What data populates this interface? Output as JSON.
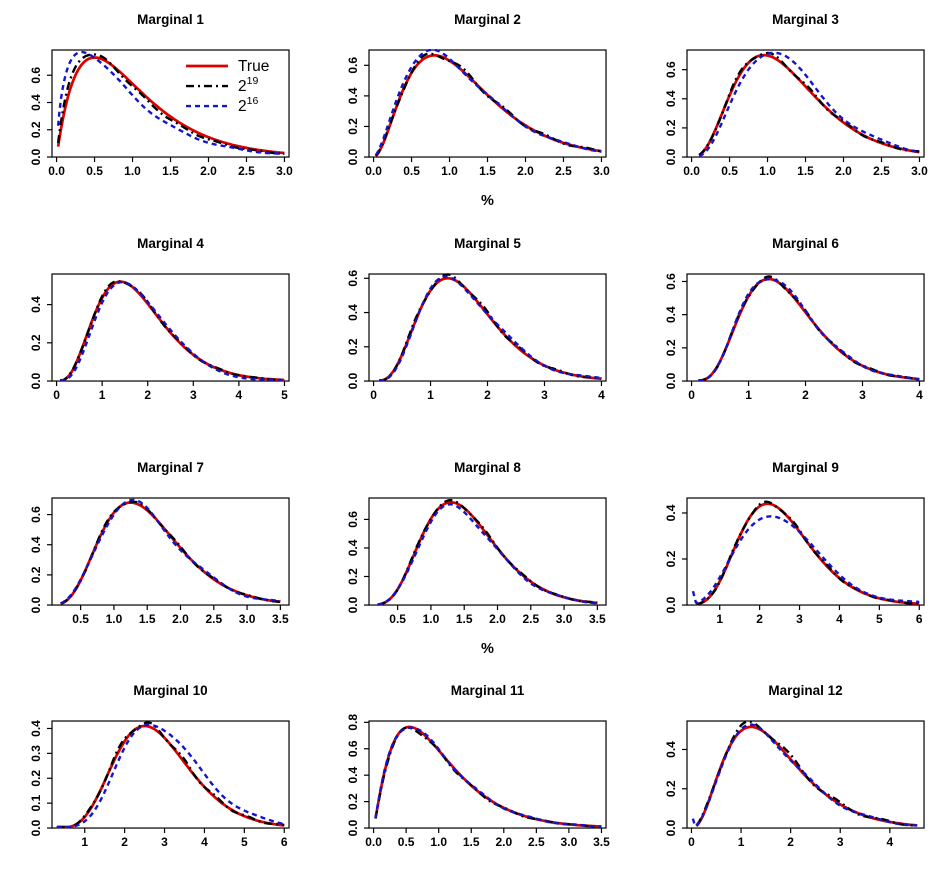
{
  "figure": {
    "background": "#ffffff",
    "series_colors": {
      "true": "#DC0000",
      "pow19": "#000000",
      "pow16": "#1414CC"
    },
    "legend": {
      "items": [
        {
          "name": "True",
          "text": "True",
          "sup": null
        },
        {
          "name": "2^19",
          "text": "2",
          "sup": "19"
        },
        {
          "name": "2^16",
          "text": "2",
          "sup": "16"
        }
      ]
    }
  },
  "chart_data": [
    {
      "type": "line",
      "title": "Marginal 1",
      "xlabel": null,
      "grid": false,
      "xlim": [
        -0.06,
        3.06
      ],
      "ylim": [
        0,
        0.785
      ],
      "xticks": [
        0,
        0.5,
        1,
        1.5,
        2,
        2.5,
        3
      ],
      "xtick_labels": [
        "0.0",
        "0.5",
        "1.0",
        "1.5",
        "2.0",
        "2.5",
        "3.0"
      ],
      "yticks": [
        0,
        0.2,
        0.4,
        0.6
      ],
      "ytick_labels": [
        "0.0",
        "0.2",
        "0.4",
        "0.6"
      ],
      "x_start": 0.02,
      "x_end": 3.0,
      "has_legend": true,
      "series": [
        {
          "name": "True",
          "color": "#DC0000",
          "dash": "solid",
          "dasharray": "",
          "width": 2.7,
          "shape": 2.0,
          "rate": 2.0,
          "peak": 0.73
        },
        {
          "name": "2^19",
          "color": "#000000",
          "dash": "dashdot",
          "dasharray": "8 4 2 4",
          "width": 2.4,
          "shape": 1.92,
          "rate": 2.02,
          "peak": 0.757,
          "dev": {
            "amp": 0.008,
            "freq": 6,
            "phase": 0
          }
        },
        {
          "name": "2^16",
          "color": "#1414CC",
          "dash": "dashed",
          "dasharray": "5 4",
          "width": 2.4,
          "shape": 1.65,
          "rate": 1.88,
          "peak": 0.775,
          "dev": {
            "amp": 0.01,
            "freq": 4,
            "phase": 1
          }
        }
      ]
    },
    {
      "type": "line",
      "title": "Marginal 2",
      "xlabel": "%",
      "grid": false,
      "xlim": [
        -0.06,
        3.06
      ],
      "ylim": [
        0,
        0.7
      ],
      "xticks": [
        0,
        0.5,
        1,
        1.5,
        2,
        2.5,
        3
      ],
      "xtick_labels": [
        "0.0",
        "0.5",
        "1.0",
        "1.5",
        "2.0",
        "2.5",
        "3.0"
      ],
      "yticks": [
        0,
        0.2,
        0.4,
        0.6
      ],
      "ytick_labels": [
        "0.0",
        "0.2",
        "0.4",
        "0.6"
      ],
      "x_start": 0.03,
      "x_end": 3.0,
      "has_legend": false,
      "series": [
        {
          "name": "True",
          "color": "#DC0000",
          "dash": "solid",
          "dasharray": "",
          "width": 2.7,
          "shape": 3.0,
          "rate": 2.5,
          "peak": 0.665
        },
        {
          "name": "2^19",
          "color": "#000000",
          "dash": "dashdot",
          "dasharray": "8 4 2 4",
          "width": 2.4,
          "shape": 3.0,
          "rate": 2.5,
          "peak": 0.672,
          "dev": {
            "amp": 0.015,
            "freq": 5.5,
            "phase": 0.6
          }
        },
        {
          "name": "2^16",
          "color": "#1414CC",
          "dash": "dashed",
          "dasharray": "5 4",
          "width": 2.4,
          "shape": 2.85,
          "rate": 2.42,
          "peak": 0.69,
          "dev": {
            "amp": 0.012,
            "freq": 3.5,
            "phase": 2.1
          }
        }
      ]
    },
    {
      "type": "line",
      "title": "Marginal 3",
      "xlabel": null,
      "grid": false,
      "xlim": [
        -0.06,
        3.06
      ],
      "ylim": [
        0,
        0.735
      ],
      "xticks": [
        0,
        0.5,
        1,
        1.5,
        2,
        2.5,
        3
      ],
      "xtick_labels": [
        "0.0",
        "0.5",
        "1.0",
        "1.5",
        "2.0",
        "2.5",
        "3.0"
      ],
      "yticks": [
        0,
        0.2,
        0.4,
        0.6
      ],
      "ytick_labels": [
        "0.0",
        "0.2",
        "0.4",
        "0.6"
      ],
      "x_start": 0.1,
      "x_end": 3.0,
      "has_legend": false,
      "series": [
        {
          "name": "True",
          "color": "#DC0000",
          "dash": "solid",
          "dasharray": "",
          "width": 2.7,
          "shape": 4.0,
          "rate": 3.16,
          "peak": 0.7
        },
        {
          "name": "2^19",
          "color": "#000000",
          "dash": "dashdot",
          "dasharray": "8 4 2 4",
          "width": 2.4,
          "shape": 4.0,
          "rate": 3.16,
          "peak": 0.71,
          "dev": {
            "amp": 0.012,
            "freq": 6,
            "phase": 1.5
          }
        },
        {
          "name": "2^16",
          "color": "#1414CC",
          "dash": "dashed",
          "dasharray": "5 4",
          "width": 2.4,
          "shape": 4.5,
          "rate": 3.4,
          "peak": 0.725,
          "dev": {
            "amp": 0.022,
            "freq": 2.6,
            "phase": 0.5
          }
        }
      ]
    },
    {
      "type": "line",
      "title": "Marginal 4",
      "xlabel": null,
      "grid": false,
      "xlim": [
        -0.1,
        5.1
      ],
      "ylim": [
        0,
        0.56
      ],
      "xticks": [
        0,
        1,
        2,
        3,
        4,
        5
      ],
      "xtick_labels": [
        "0",
        "1",
        "2",
        "3",
        "4",
        "5"
      ],
      "yticks": [
        0,
        0.2,
        0.4
      ],
      "ytick_labels": [
        "0.0",
        "0.2",
        "0.4"
      ],
      "x_start": 0.08,
      "x_end": 5.0,
      "has_legend": false,
      "series": [
        {
          "name": "True",
          "color": "#DC0000",
          "dash": "solid",
          "dasharray": "",
          "width": 2.7,
          "shape": 4.5,
          "rate": 2.5,
          "peak": 0.52
        },
        {
          "name": "2^19",
          "color": "#000000",
          "dash": "dashdot",
          "dasharray": "8 4 2 4",
          "width": 2.4,
          "shape": 4.5,
          "rate": 2.5,
          "peak": 0.525,
          "dev": {
            "amp": 0.007,
            "freq": 6,
            "phase": 0
          }
        },
        {
          "name": "2^16",
          "color": "#1414CC",
          "dash": "dashed",
          "dasharray": "5 4",
          "width": 2.4,
          "shape": 5.2,
          "rate": 2.87,
          "peak": 0.535,
          "dev": {
            "amp": 0.02,
            "freq": 2,
            "phase": 0.7
          }
        }
      ]
    },
    {
      "type": "line",
      "title": "Marginal 5",
      "xlabel": null,
      "grid": false,
      "xlim": [
        -0.08,
        4.08
      ],
      "ylim": [
        0,
        0.625
      ],
      "xticks": [
        0,
        1,
        2,
        3,
        4
      ],
      "xtick_labels": [
        "0",
        "1",
        "2",
        "3",
        "4"
      ],
      "yticks": [
        0,
        0.2,
        0.4,
        0.6
      ],
      "ytick_labels": [
        "0.0",
        "0.2",
        "0.4",
        "0.6"
      ],
      "x_start": 0.1,
      "x_end": 4.0,
      "has_legend": false,
      "series": [
        {
          "name": "True",
          "color": "#DC0000",
          "dash": "solid",
          "dasharray": "",
          "width": 2.7,
          "shape": 5.0,
          "rate": 3.08,
          "peak": 0.6
        },
        {
          "name": "2^19",
          "color": "#000000",
          "dash": "dashdot",
          "dasharray": "8 4 2 4",
          "width": 2.4,
          "shape": 5.0,
          "rate": 3.08,
          "peak": 0.61,
          "dev": {
            "amp": 0.012,
            "freq": 6,
            "phase": 2.5
          }
        },
        {
          "name": "2^16",
          "color": "#1414CC",
          "dash": "dashed",
          "dasharray": "5 4",
          "width": 2.4,
          "shape": 5.0,
          "rate": 3.05,
          "peak": 0.6,
          "dev": {
            "amp": 0.018,
            "freq": 2.8,
            "phase": 3.5
          }
        }
      ]
    },
    {
      "type": "line",
      "title": "Marginal 6",
      "xlabel": null,
      "grid": false,
      "xlim": [
        -0.08,
        4.08
      ],
      "ylim": [
        0,
        0.645
      ],
      "xticks": [
        0,
        1,
        2,
        3,
        4
      ],
      "xtick_labels": [
        "0",
        "1",
        "2",
        "3",
        "4"
      ],
      "yticks": [
        0,
        0.2,
        0.4,
        0.6
      ],
      "ytick_labels": [
        "0.0",
        "0.2",
        "0.4",
        "0.6"
      ],
      "x_start": 0.12,
      "x_end": 4.0,
      "has_legend": false,
      "series": [
        {
          "name": "True",
          "color": "#DC0000",
          "dash": "solid",
          "dasharray": "",
          "width": 2.7,
          "shape": 5.5,
          "rate": 3.33,
          "peak": 0.615
        },
        {
          "name": "2^19",
          "color": "#000000",
          "dash": "dashdot",
          "dasharray": "8 4 2 4",
          "width": 2.4,
          "shape": 5.5,
          "rate": 3.33,
          "peak": 0.62,
          "dev": {
            "amp": 0.01,
            "freq": 6.5,
            "phase": 1
          }
        },
        {
          "name": "2^16",
          "color": "#1414CC",
          "dash": "dashed",
          "dasharray": "5 4",
          "width": 2.4,
          "shape": 5.5,
          "rate": 3.33,
          "peak": 0.625,
          "dev": {
            "amp": 0.012,
            "freq": 4.2,
            "phase": 2.8
          }
        }
      ]
    },
    {
      "type": "line",
      "title": "Marginal 7",
      "xlabel": null,
      "grid": false,
      "xlim": [
        0.07,
        3.63
      ],
      "ylim": [
        0,
        0.71
      ],
      "xticks": [
        0.5,
        1,
        1.5,
        2,
        2.5,
        3,
        3.5
      ],
      "xtick_labels": [
        "0.5",
        "1.0",
        "1.5",
        "2.0",
        "2.5",
        "3.0",
        "3.5"
      ],
      "yticks": [
        0,
        0.2,
        0.4,
        0.6
      ],
      "ytick_labels": [
        "0.0",
        "0.2",
        "0.4",
        "0.6"
      ],
      "x_start": 0.2,
      "x_end": 3.5,
      "has_legend": false,
      "series": [
        {
          "name": "True",
          "color": "#DC0000",
          "dash": "solid",
          "dasharray": "",
          "width": 2.7,
          "shape": 5.5,
          "rate": 3.6,
          "peak": 0.68
        },
        {
          "name": "2^19",
          "color": "#000000",
          "dash": "dashdot",
          "dasharray": "8 4 2 4",
          "width": 2.4,
          "shape": 5.5,
          "rate": 3.6,
          "peak": 0.685,
          "dev": {
            "amp": 0.008,
            "freq": 6,
            "phase": 0.3
          }
        },
        {
          "name": "2^16",
          "color": "#1414CC",
          "dash": "dashed",
          "dasharray": "5 4",
          "width": 2.4,
          "shape": 5.5,
          "rate": 3.6,
          "peak": 0.68,
          "dev": {
            "amp": 0.022,
            "freq": 3.1,
            "phase": 0.9
          }
        }
      ]
    },
    {
      "type": "line",
      "title": "Marginal 8",
      "xlabel": "%",
      "grid": false,
      "xlim": [
        0.07,
        3.63
      ],
      "ylim": [
        0,
        0.75
      ],
      "xticks": [
        0.5,
        1,
        1.5,
        2,
        2.5,
        3,
        3.5
      ],
      "xtick_labels": [
        "0.5",
        "1.0",
        "1.5",
        "2.0",
        "2.5",
        "3.0",
        "3.5"
      ],
      "yticks": [
        0,
        0.2,
        0.4,
        0.6
      ],
      "ytick_labels": [
        "0.0",
        "0.2",
        "0.4",
        "0.6"
      ],
      "x_start": 0.2,
      "x_end": 3.5,
      "has_legend": false,
      "series": [
        {
          "name": "True",
          "color": "#DC0000",
          "dash": "solid",
          "dasharray": "",
          "width": 2.7,
          "shape": 6.5,
          "rate": 4.23,
          "peak": 0.72
        },
        {
          "name": "2^19",
          "color": "#000000",
          "dash": "dashdot",
          "dasharray": "8 4 2 4",
          "width": 2.4,
          "shape": 6.5,
          "rate": 4.23,
          "peak": 0.727,
          "dev": {
            "amp": 0.008,
            "freq": 6,
            "phase": 1.8
          }
        },
        {
          "name": "2^16",
          "color": "#1414CC",
          "dash": "dashed",
          "dasharray": "5 4",
          "width": 2.4,
          "shape": 6.5,
          "rate": 4.23,
          "peak": 0.695,
          "dev": {
            "amp": 0.012,
            "freq": 3.8,
            "phase": 0.4
          }
        }
      ]
    },
    {
      "type": "line",
      "title": "Marginal 9",
      "xlabel": null,
      "grid": false,
      "xlim": [
        0.18,
        6.12
      ],
      "ylim": [
        0,
        0.465
      ],
      "xticks": [
        1,
        2,
        3,
        4,
        5,
        6
      ],
      "xtick_labels": [
        "1",
        "2",
        "3",
        "4",
        "5",
        "6"
      ],
      "yticks": [
        0,
        0.2,
        0.4
      ],
      "ytick_labels": [
        "0.0",
        "0.2",
        "0.4"
      ],
      "x_start": 0.42,
      "x_end": 6.0,
      "has_legend": false,
      "series": [
        {
          "name": "True",
          "color": "#DC0000",
          "dash": "solid",
          "dasharray": "",
          "width": 2.7,
          "shape": 7.0,
          "rate": 2.73,
          "peak": 0.44
        },
        {
          "name": "2^19",
          "color": "#000000",
          "dash": "dashdot",
          "dasharray": "8 4 2 4",
          "width": 2.4,
          "shape": 7.0,
          "rate": 2.73,
          "peak": 0.444,
          "dev": {
            "amp": 0.006,
            "freq": 7,
            "phase": 0.9
          }
        },
        {
          "name": "2^16",
          "color": "#1414CC",
          "dash": "dashed",
          "dasharray": "5 4",
          "width": 2.4,
          "shape": 6.1,
          "rate": 2.32,
          "peak": 0.4,
          "dev": {
            "amp": 0.02,
            "freq": 1.9,
            "phase": 1.58
          },
          "pre": [
            [
              0.33,
              0.06
            ],
            [
              0.4,
              0.012
            ]
          ]
        }
      ]
    },
    {
      "type": "line",
      "title": "Marginal 10",
      "xlabel": null,
      "grid": false,
      "xlim": [
        0.18,
        6.12
      ],
      "ylim": [
        0,
        0.43
      ],
      "xticks": [
        1,
        2,
        3,
        4,
        5,
        6
      ],
      "xtick_labels": [
        "1",
        "2",
        "3",
        "4",
        "5",
        "6"
      ],
      "yticks": [
        0,
        0.1,
        0.2,
        0.3,
        0.4
      ],
      "ytick_labels": [
        "0.0",
        "0.1",
        "0.2",
        "0.3",
        "0.4"
      ],
      "x_start": 0.3,
      "x_end": 6.0,
      "has_legend": false,
      "series": [
        {
          "name": "True",
          "color": "#DC0000",
          "dash": "solid",
          "dasharray": "",
          "width": 2.7,
          "shape": 8.0,
          "rate": 2.8,
          "peak": 0.41
        },
        {
          "name": "2^19",
          "color": "#000000",
          "dash": "dashdot",
          "dasharray": "8 4 2 4",
          "width": 2.4,
          "shape": 8.0,
          "rate": 2.8,
          "peak": 0.418,
          "dev": {
            "amp": 0.009,
            "freq": 7,
            "phase": 2.2
          }
        },
        {
          "name": "2^16",
          "color": "#1414CC",
          "dash": "dashed",
          "dasharray": "5 4",
          "width": 2.4,
          "shape": 8.4,
          "rate": 2.76,
          "peak": 0.42,
          "dev": {
            "amp": 0.01,
            "freq": 3.4,
            "phase": 1.2
          }
        }
      ]
    },
    {
      "type": "line",
      "title": "Marginal 11",
      "xlabel": null,
      "grid": false,
      "xlim": [
        -0.07,
        3.57
      ],
      "ylim": [
        0,
        0.81
      ],
      "xticks": [
        0,
        0.5,
        1,
        1.5,
        2,
        2.5,
        3,
        3.5
      ],
      "xtick_labels": [
        "0.0",
        "0.5",
        "1.0",
        "1.5",
        "2.0",
        "2.5",
        "3.0",
        "3.5"
      ],
      "yticks": [
        0,
        0.2,
        0.4,
        0.6,
        0.8
      ],
      "ytick_labels": [
        "0.0",
        "0.2",
        "0.4",
        "0.6",
        "0.8"
      ],
      "x_start": 0.03,
      "x_end": 3.5,
      "has_legend": false,
      "series": [
        {
          "name": "True",
          "color": "#DC0000",
          "dash": "solid",
          "dasharray": "",
          "width": 2.7,
          "shape": 2.2,
          "rate": 2.18,
          "peak": 0.765
        },
        {
          "name": "2^19",
          "color": "#000000",
          "dash": "dashdot",
          "dasharray": "8 4 2 4",
          "width": 2.4,
          "shape": 2.2,
          "rate": 2.18,
          "peak": 0.755,
          "dev": {
            "amp": 0.01,
            "freq": 6.5,
            "phase": 2.9
          }
        },
        {
          "name": "2^16",
          "color": "#1414CC",
          "dash": "dashed",
          "dasharray": "5 4",
          "width": 2.4,
          "shape": 2.2,
          "rate": 2.18,
          "peak": 0.77,
          "dev": {
            "amp": 0.012,
            "freq": 4.6,
            "phase": 0.8
          }
        }
      ]
    },
    {
      "type": "line",
      "title": "Marginal 12",
      "xlabel": null,
      "grid": false,
      "xlim": [
        -0.09,
        4.69
      ],
      "ylim": [
        0,
        0.545
      ],
      "xticks": [
        0,
        1,
        2,
        3,
        4
      ],
      "xtick_labels": [
        "0",
        "1",
        "2",
        "3",
        "4"
      ],
      "yticks": [
        0,
        0.2,
        0.4
      ],
      "ytick_labels": [
        "0.0",
        "0.2",
        "0.4"
      ],
      "x_start": 0.1,
      "x_end": 4.55,
      "has_legend": false,
      "series": [
        {
          "name": "True",
          "color": "#DC0000",
          "dash": "solid",
          "dasharray": "",
          "width": 2.7,
          "shape": 3.5,
          "rate": 2.08,
          "peak": 0.515
        },
        {
          "name": "2^19",
          "color": "#000000",
          "dash": "dashdot",
          "dasharray": "8 4 2 4",
          "width": 2.4,
          "shape": 3.5,
          "rate": 2.08,
          "peak": 0.53,
          "dev": {
            "amp": 0.016,
            "freq": 4.8,
            "phase": 1.2
          }
        },
        {
          "name": "2^16",
          "color": "#1414CC",
          "dash": "dashed",
          "dasharray": "5 4",
          "width": 2.4,
          "shape": 3.5,
          "rate": 2.08,
          "peak": 0.515,
          "dev": {
            "amp": 0.012,
            "freq": 3.6,
            "phase": 2.4
          },
          "pre": [
            [
              0.03,
              0.048
            ],
            [
              0.07,
              0.012
            ]
          ]
        }
      ]
    }
  ]
}
